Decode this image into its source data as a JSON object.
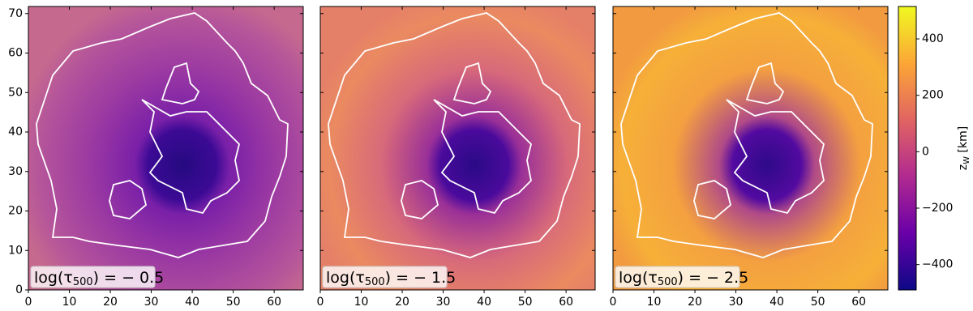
{
  "chart_data": [
    {
      "type": "image",
      "xlim": [
        0,
        67.1
      ],
      "ylim": [
        0,
        71.8
      ],
      "xticks": [
        0,
        10,
        20,
        30,
        40,
        50,
        60
      ],
      "yticks": [
        0,
        10,
        20,
        30,
        40,
        50,
        60,
        70
      ],
      "annotation": [
        "log(τ",
        "500",
        ") = − 0.5"
      ]
    },
    {
      "type": "image",
      "xlim": [
        0,
        67.1
      ],
      "ylim": [
        0,
        71.8
      ],
      "xticks": [
        0,
        10,
        20,
        30,
        40,
        50,
        60
      ],
      "annotation": [
        "log(τ",
        "500",
        ") = − 1.5"
      ]
    },
    {
      "type": "image",
      "xlim": [
        0,
        67.1
      ],
      "ylim": [
        0,
        71.8
      ],
      "xticks": [
        0,
        10,
        20,
        30,
        40,
        50,
        60
      ],
      "annotation": [
        "log(τ",
        "500",
        ") = − 2.5"
      ]
    },
    {
      "type": "colorbar",
      "label": [
        "z",
        "W",
        " [km]"
      ],
      "clim": [
        -490,
        515
      ],
      "ticks": [
        {
          "value": -400,
          "label": "−400"
        },
        {
          "value": -200,
          "label": "−200"
        },
        0,
        200,
        400
      ],
      "colormap": [
        "#0d0887",
        "#6a00a8",
        "#b12a90",
        "#e16462",
        "#fca636",
        "#f0f921"
      ]
    }
  ]
}
